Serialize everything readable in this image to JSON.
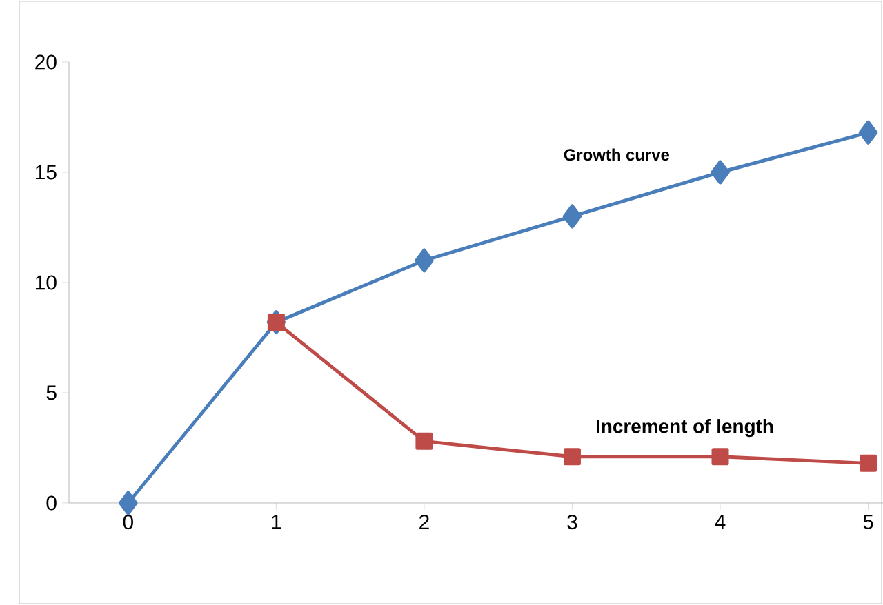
{
  "chart_data": {
    "type": "line",
    "x": [
      0,
      1,
      2,
      3,
      4,
      5
    ],
    "series": [
      {
        "name": "Growth curve",
        "color": "#4a7ebb",
        "marker": "diamond",
        "values": [
          0,
          8.2,
          11,
          13,
          15,
          16.8
        ]
      },
      {
        "name": "Increment of length",
        "color": "#be4b48",
        "marker": "square",
        "x": [
          1,
          2,
          3,
          4,
          5
        ],
        "values": [
          8.2,
          2.8,
          2.1,
          2.1,
          1.8
        ]
      }
    ],
    "xlim": [
      -0.4,
      5.1
    ],
    "xticks": [
      0,
      1,
      2,
      3,
      4,
      5
    ],
    "ylim": [
      0,
      20
    ],
    "yticks": [
      0,
      5,
      10,
      15,
      20
    ],
    "line_style": "solid"
  }
}
